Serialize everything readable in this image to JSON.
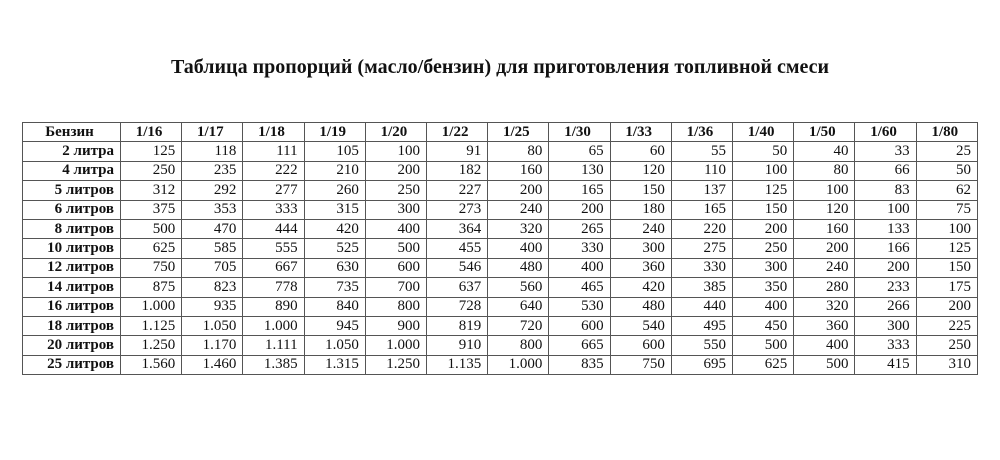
{
  "title": "Таблица пропорций (масло/бензин) для приготовления топливной смеси",
  "table": {
    "corner_header": "Бензин",
    "columns": [
      "1/16",
      "1/17",
      "1/18",
      "1/19",
      "1/20",
      "1/22",
      "1/25",
      "1/30",
      "1/33",
      "1/36",
      "1/40",
      "1/50",
      "1/60",
      "1/80"
    ],
    "rows": [
      {
        "label": "2 литра",
        "values": [
          "125",
          "118",
          "111",
          "105",
          "100",
          "91",
          "80",
          "65",
          "60",
          "55",
          "50",
          "40",
          "33",
          "25"
        ]
      },
      {
        "label": "4 литра",
        "values": [
          "250",
          "235",
          "222",
          "210",
          "200",
          "182",
          "160",
          "130",
          "120",
          "110",
          "100",
          "80",
          "66",
          "50"
        ]
      },
      {
        "label": "5 литров",
        "values": [
          "312",
          "292",
          "277",
          "260",
          "250",
          "227",
          "200",
          "165",
          "150",
          "137",
          "125",
          "100",
          "83",
          "62"
        ]
      },
      {
        "label": "6 литров",
        "values": [
          "375",
          "353",
          "333",
          "315",
          "300",
          "273",
          "240",
          "200",
          "180",
          "165",
          "150",
          "120",
          "100",
          "75"
        ]
      },
      {
        "label": "8 литров",
        "values": [
          "500",
          "470",
          "444",
          "420",
          "400",
          "364",
          "320",
          "265",
          "240",
          "220",
          "200",
          "160",
          "133",
          "100"
        ]
      },
      {
        "label": "10 литров",
        "values": [
          "625",
          "585",
          "555",
          "525",
          "500",
          "455",
          "400",
          "330",
          "300",
          "275",
          "250",
          "200",
          "166",
          "125"
        ]
      },
      {
        "label": "12 литров",
        "values": [
          "750",
          "705",
          "667",
          "630",
          "600",
          "546",
          "480",
          "400",
          "360",
          "330",
          "300",
          "240",
          "200",
          "150"
        ]
      },
      {
        "label": "14 литров",
        "values": [
          "875",
          "823",
          "778",
          "735",
          "700",
          "637",
          "560",
          "465",
          "420",
          "385",
          "350",
          "280",
          "233",
          "175"
        ]
      },
      {
        "label": "16 литров",
        "values": [
          "1.000",
          "935",
          "890",
          "840",
          "800",
          "728",
          "640",
          "530",
          "480",
          "440",
          "400",
          "320",
          "266",
          "200"
        ]
      },
      {
        "label": "18 литров",
        "values": [
          "1.125",
          "1.050",
          "1.000",
          "945",
          "900",
          "819",
          "720",
          "600",
          "540",
          "495",
          "450",
          "360",
          "300",
          "225"
        ]
      },
      {
        "label": "20 литров",
        "values": [
          "1.250",
          "1.170",
          "1.111",
          "1.050",
          "1.000",
          "910",
          "800",
          "665",
          "600",
          "550",
          "500",
          "400",
          "333",
          "250"
        ]
      },
      {
        "label": "25 литров",
        "values": [
          "1.560",
          "1.460",
          "1.385",
          "1.315",
          "1.250",
          "1.135",
          "1.000",
          "835",
          "750",
          "695",
          "625",
          "500",
          "415",
          "310"
        ]
      }
    ]
  }
}
